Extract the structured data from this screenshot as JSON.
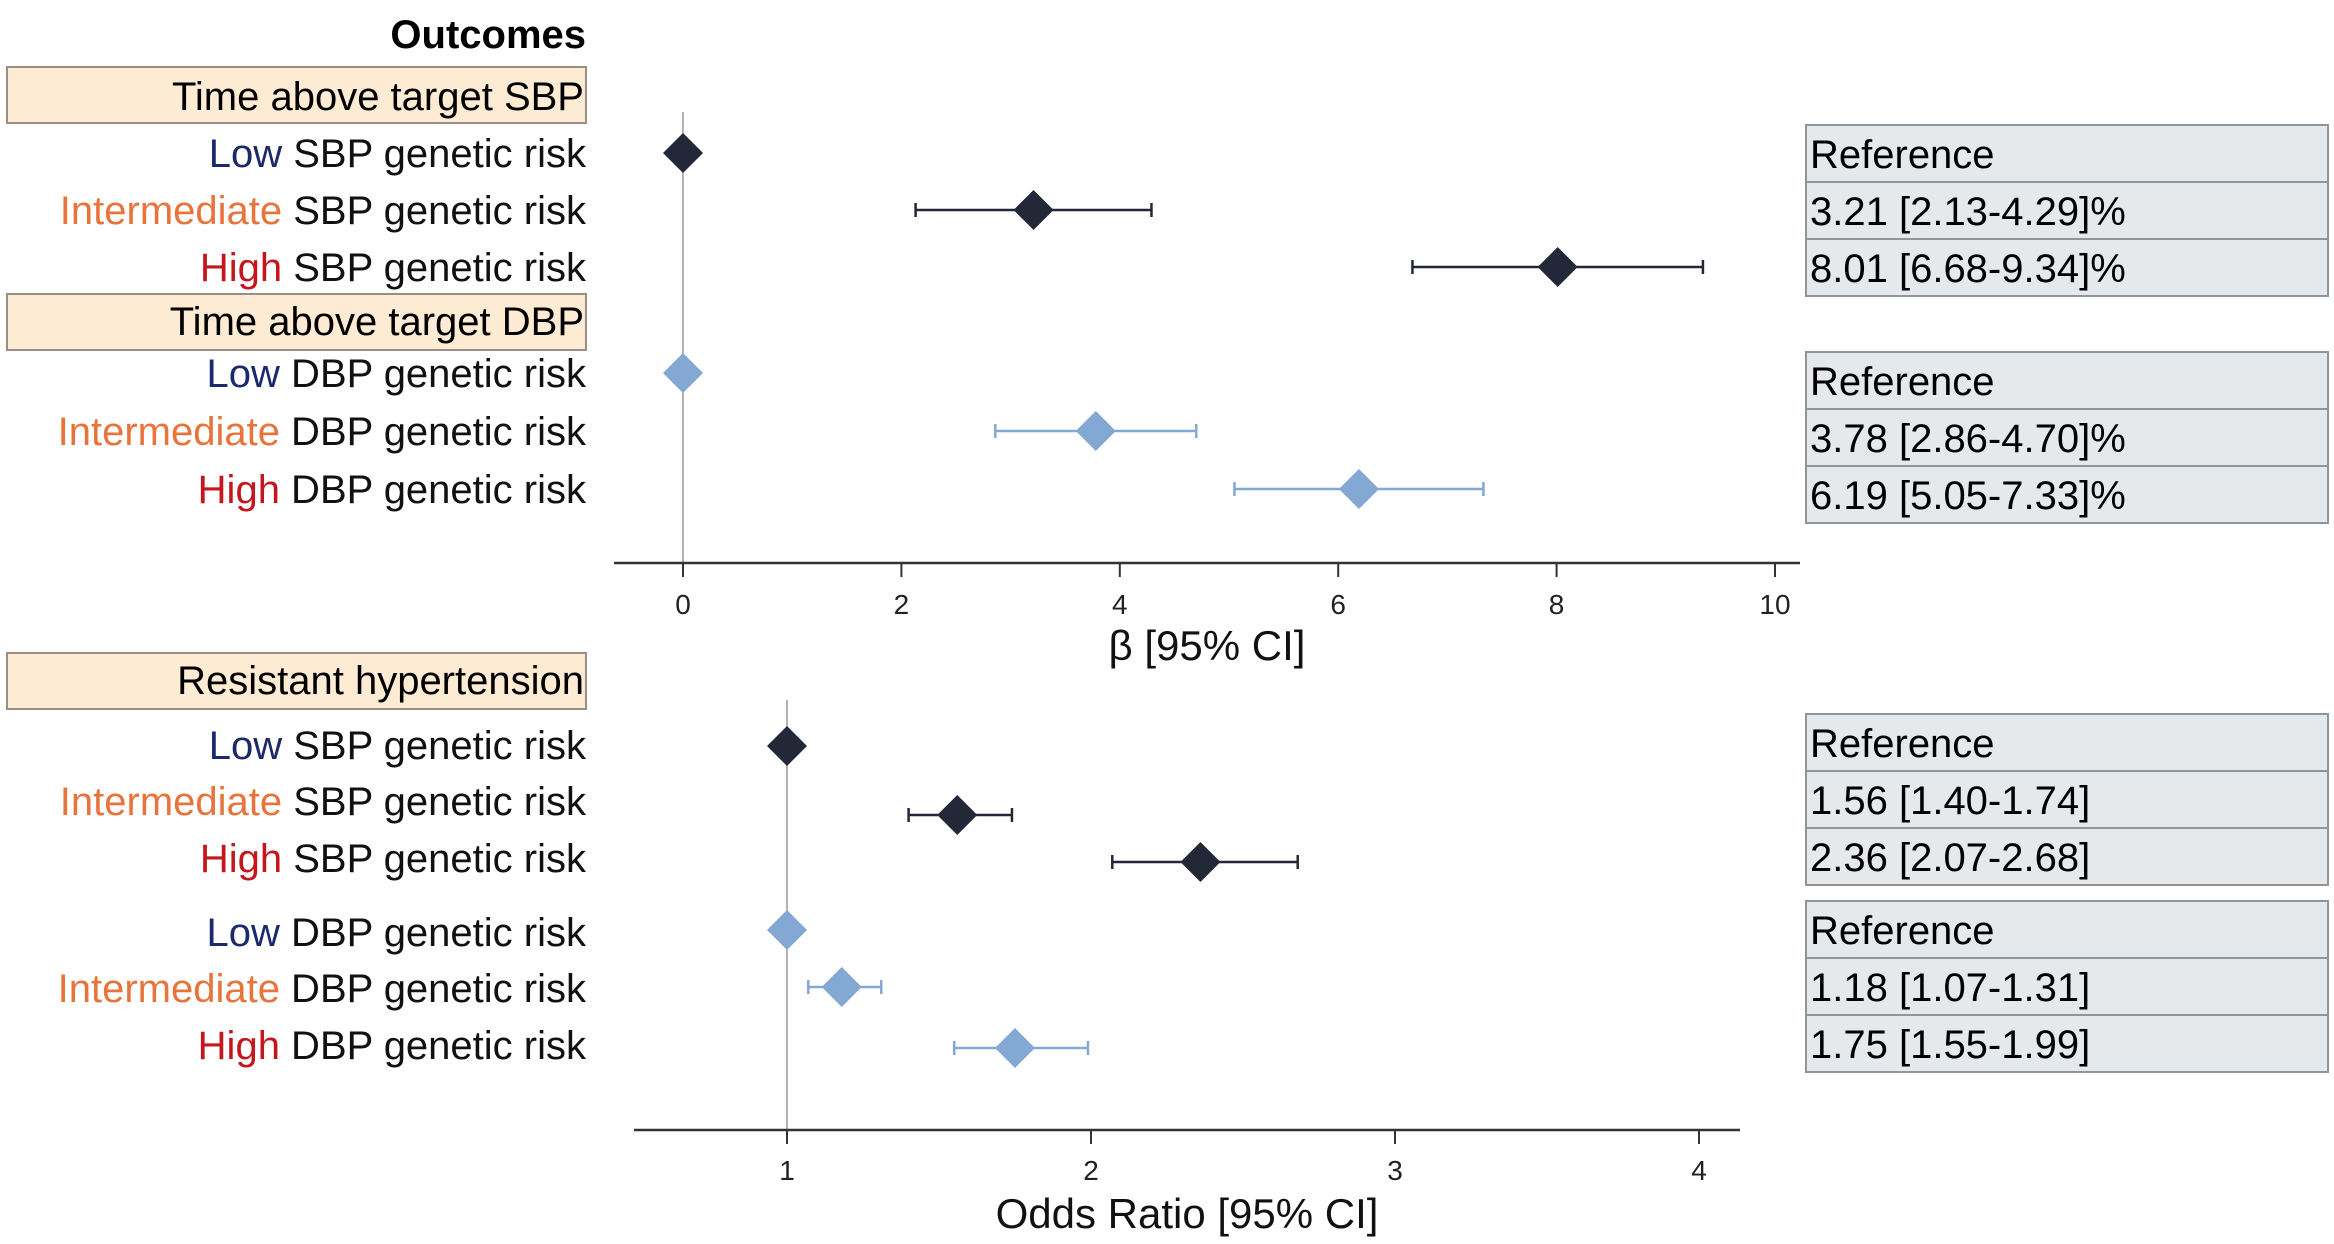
{
  "title": "Outcomes",
  "colors": {
    "low": "#1b2a6b",
    "intermediate": "#e8743b",
    "high": "#c4161c",
    "sbp_marker": "#232838",
    "dbp_marker": "#84a8d4",
    "section_fill": "#fdebd3",
    "result_fill": "#e6e9ec"
  },
  "chart_data": [
    {
      "type": "forest",
      "xlabel": "β [95% CI]",
      "xlim": [
        -0.6,
        10.2
      ],
      "ticks": [
        0,
        2,
        4,
        6,
        8,
        10
      ],
      "tick_labels": [
        "0",
        "2",
        "4",
        "6",
        "8",
        "10"
      ],
      "reference_line": 0,
      "sections": [
        {
          "title": "Time above target SBP"
        },
        {
          "title": "Time above target DBP"
        }
      ],
      "rows": [
        {
          "level": "Low",
          "label": "SBP genetic risk",
          "series": "SBP",
          "est": 0,
          "lo": null,
          "hi": null,
          "result": "Reference"
        },
        {
          "level": "Intermediate",
          "label": "SBP genetic risk",
          "series": "SBP",
          "est": 3.21,
          "lo": 2.13,
          "hi": 4.29,
          "result": "3.21 [2.13-4.29]%"
        },
        {
          "level": "High",
          "label": "SBP genetic risk",
          "series": "SBP",
          "est": 8.01,
          "lo": 6.68,
          "hi": 9.34,
          "result": "8.01 [6.68-9.34]%"
        },
        {
          "level": "Low",
          "label": "DBP genetic risk",
          "series": "DBP",
          "est": 0,
          "lo": null,
          "hi": null,
          "result": "Reference"
        },
        {
          "level": "Intermediate",
          "label": "DBP genetic risk",
          "series": "DBP",
          "est": 3.78,
          "lo": 2.86,
          "hi": 4.7,
          "result": "3.78 [2.86-4.70]%"
        },
        {
          "level": "High",
          "label": "DBP genetic risk",
          "series": "DBP",
          "est": 6.19,
          "lo": 5.05,
          "hi": 7.33,
          "result": "6.19 [5.05-7.33]%"
        }
      ]
    },
    {
      "type": "forest",
      "xlabel": "Odds Ratio [95% CI]",
      "xlim": [
        0.5,
        4.14
      ],
      "ticks": [
        1,
        2,
        3,
        4
      ],
      "tick_labels": [
        "1",
        "2",
        "3",
        "4"
      ],
      "reference_line": 1,
      "sections": [
        {
          "title": "Resistant hypertension"
        }
      ],
      "rows": [
        {
          "level": "Low",
          "label": "SBP genetic risk",
          "series": "SBP",
          "est": 1,
          "lo": null,
          "hi": null,
          "result": "Reference"
        },
        {
          "level": "Intermediate",
          "label": "SBP genetic risk",
          "series": "SBP",
          "est": 1.56,
          "lo": 1.4,
          "hi": 1.74,
          "result": "1.56 [1.40-1.74]"
        },
        {
          "level": "High",
          "label": "SBP genetic risk",
          "series": "SBP",
          "est": 2.36,
          "lo": 2.07,
          "hi": 2.68,
          "result": "2.36 [2.07-2.68]"
        },
        {
          "level": "Low",
          "label": "DBP genetic risk",
          "series": "DBP",
          "est": 1,
          "lo": null,
          "hi": null,
          "result": "Reference"
        },
        {
          "level": "Intermediate",
          "label": "DBP genetic risk",
          "series": "DBP",
          "est": 1.18,
          "lo": 1.07,
          "hi": 1.31,
          "result": "1.18 [1.07-1.31]"
        },
        {
          "level": "High",
          "label": "DBP genetic risk",
          "series": "DBP",
          "est": 1.75,
          "lo": 1.55,
          "hi": 1.99,
          "result": "1.75 [1.55-1.99]"
        }
      ]
    }
  ]
}
